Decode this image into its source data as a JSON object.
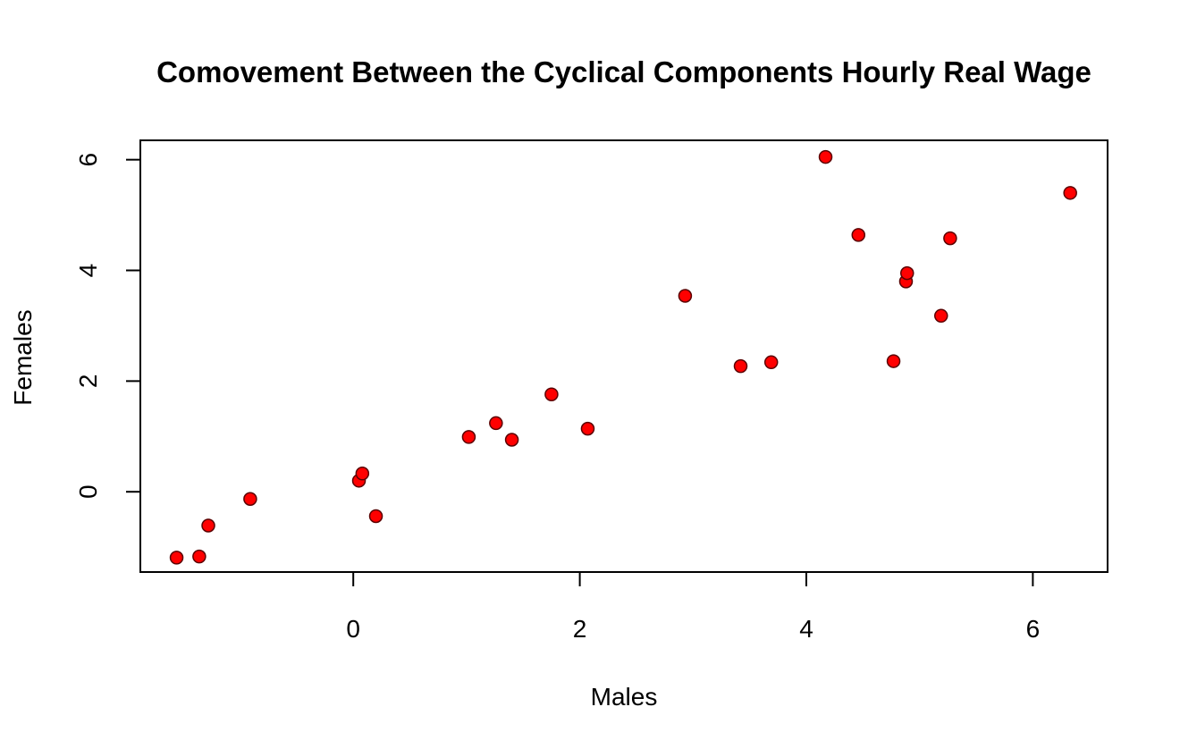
{
  "chart_data": {
    "type": "scatter",
    "title": "Comovement Between the Cyclical Components Hourly Real Wage",
    "xlabel": "Males",
    "ylabel": "Females",
    "xlim": [
      -1.88,
      6.66
    ],
    "ylim": [
      -1.45,
      6.35
    ],
    "x_ticks": [
      0,
      2,
      4,
      6
    ],
    "x_tick_labels": [
      "0",
      "2",
      "4",
      "6"
    ],
    "y_ticks": [
      0,
      2,
      4,
      6
    ],
    "y_tick_labels": [
      "0",
      "2",
      "4",
      "6"
    ],
    "grid": false,
    "legend": "none",
    "marker": {
      "shape": "circle",
      "fill_color": "#ff0000",
      "edge_color": "#5a0000"
    },
    "points": [
      {
        "x": -1.56,
        "y": -1.19
      },
      {
        "x": -1.36,
        "y": -1.17
      },
      {
        "x": -1.28,
        "y": -0.61
      },
      {
        "x": -0.91,
        "y": -0.13
      },
      {
        "x": 0.05,
        "y": 0.2
      },
      {
        "x": 0.08,
        "y": 0.33
      },
      {
        "x": 0.2,
        "y": -0.44
      },
      {
        "x": 1.02,
        "y": 0.99
      },
      {
        "x": 1.26,
        "y": 1.24
      },
      {
        "x": 1.4,
        "y": 0.94
      },
      {
        "x": 1.75,
        "y": 1.76
      },
      {
        "x": 2.07,
        "y": 1.14
      },
      {
        "x": 2.93,
        "y": 3.54
      },
      {
        "x": 3.42,
        "y": 2.27
      },
      {
        "x": 3.69,
        "y": 2.34
      },
      {
        "x": 4.17,
        "y": 6.05
      },
      {
        "x": 4.46,
        "y": 4.64
      },
      {
        "x": 4.77,
        "y": 2.36
      },
      {
        "x": 4.88,
        "y": 3.8
      },
      {
        "x": 4.89,
        "y": 3.95
      },
      {
        "x": 5.19,
        "y": 3.18
      },
      {
        "x": 5.27,
        "y": 4.58
      },
      {
        "x": 6.33,
        "y": 5.4
      }
    ]
  }
}
